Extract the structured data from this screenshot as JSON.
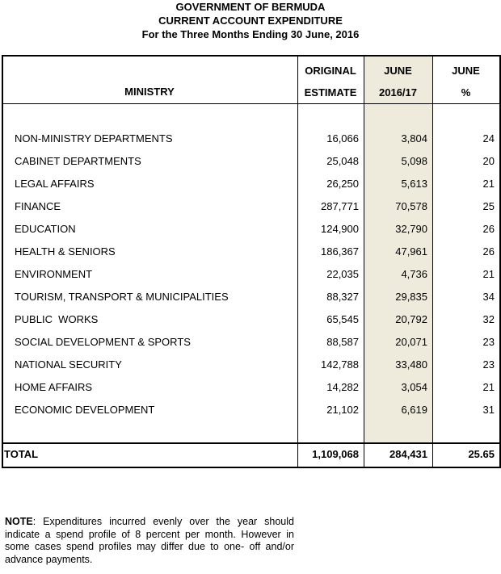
{
  "header": {
    "lines": [
      "GOVERNMENT OF BERMUDA",
      "CURRENT ACCOUNT EXPENDITURE",
      "For the Three Months Ending 30 June, 2016"
    ]
  },
  "table": {
    "columns": [
      [
        "MINISTRY"
      ],
      [
        "ORIGINAL",
        "ESTIMATE"
      ],
      [
        "JUNE",
        "2016/17"
      ],
      [
        "JUNE",
        "%"
      ]
    ],
    "rows": [
      [
        "NON-MINISTRY DEPARTMENTS",
        "16,066",
        "3,804",
        "24"
      ],
      [
        "CABINET DEPARTMENTS",
        "25,048",
        "5,098",
        "20"
      ],
      [
        "LEGAL AFFAIRS",
        "26,250",
        "5,613",
        "21"
      ],
      [
        "FINANCE",
        "287,771",
        "70,578",
        "25"
      ],
      [
        "EDUCATION",
        "124,900",
        "32,790",
        "26"
      ],
      [
        "HEALTH & SENIORS",
        "186,367",
        "47,961",
        "26"
      ],
      [
        "ENVIRONMENT",
        "22,035",
        "4,736",
        "21"
      ],
      [
        "TOURISM, TRANSPORT & MUNICIPALITIES",
        "88,327",
        "29,835",
        "34"
      ],
      [
        "PUBLIC  WORKS",
        "65,545",
        "20,792",
        "32"
      ],
      [
        "SOCIAL DEVELOPMENT & SPORTS",
        "88,587",
        "20,071",
        "23"
      ],
      [
        "NATIONAL SECURITY",
        "142,788",
        "33,480",
        "23"
      ],
      [
        "HOME AFFAIRS",
        "14,282",
        "3,054",
        "21"
      ],
      [
        "ECONOMIC DEVELOPMENT",
        "21,102",
        "6,619",
        "31"
      ]
    ],
    "total": [
      "TOTAL",
      "1,109,068",
      "284,431",
      "25.65"
    ]
  },
  "note": {
    "label": "NOTE",
    "text": ": Expenditures incurred evenly over the year should indicate a spend profile of 8 percent per month. However in some cases spend profiles may differ due to one- off and/or advance payments."
  }
}
